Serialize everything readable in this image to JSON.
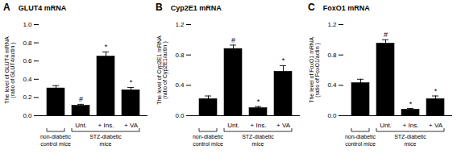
{
  "chart_data": [
    {
      "type": "bar",
      "panel_label": "A",
      "title": "GLUT4 mRNA",
      "y_label": "The level of GLUT4 mRNA\n(ratio of GLUT4/actin )",
      "categories": [
        null,
        "Unt.",
        "+ Ins.",
        "+ VA"
      ],
      "values": [
        0.3,
        0.11,
        0.65,
        0.28
      ],
      "errors": [
        0.03,
        0.015,
        0.05,
        0.03
      ],
      "annotations": [
        null,
        "#",
        "*",
        "*"
      ],
      "color": "#000000",
      "ylim": [
        0,
        1.0
      ],
      "yticks": [
        {
          "value": 0.0,
          "label": "0.0"
        },
        0.2,
        0.4,
        0.6,
        0.8,
        {
          "value": 1.0,
          "label": "1.0"
        }
      ],
      "groups": [
        {
          "label": "non-diabetic\ncontrol mice",
          "size": 1
        },
        {
          "label": "STZ-diabetic\nmice",
          "size": 3
        }
      ]
    },
    {
      "type": "bar",
      "panel_label": "B",
      "title": "Cyp2E1 mRNA",
      "y_label": "The level of Cyp2E1 mRNA\n(ratio of Cyp2E1/actin )",
      "categories": [
        null,
        "Unt.",
        "+ Ins.",
        "+ VA"
      ],
      "values": [
        0.22,
        0.88,
        0.1,
        0.58
      ],
      "errors": [
        0.04,
        0.05,
        0.02,
        0.08
      ],
      "annotations": [
        null,
        "#",
        "*",
        "*"
      ],
      "color": "#000000",
      "ylim": [
        0,
        1.2
      ],
      "yticks": [
        {
          "value": 0.0,
          "label": "0.0"
        },
        0.4,
        0.8,
        1.2
      ],
      "groups": [
        {
          "label": "non-diabetic\ncontrol mice",
          "size": 1
        },
        {
          "label": "STZ-diabetic\nmice",
          "size": 3
        }
      ]
    },
    {
      "type": "bar",
      "panel_label": "C",
      "title": "FoxO1 mRNA",
      "y_label": "The level of FoxO1 mRNA\n(ratio of FoxO1/actin )",
      "categories": [
        null,
        "Unt.",
        "+ Ins.",
        "+ VA"
      ],
      "values": [
        0.43,
        0.95,
        0.08,
        0.22
      ],
      "errors": [
        0.05,
        0.05,
        0.015,
        0.04
      ],
      "annotations": [
        null,
        "#",
        "*",
        "*"
      ],
      "color": "#000000",
      "ylim": [
        0,
        1.2
      ],
      "yticks": [
        {
          "value": 0.0,
          "label": "0.0"
        },
        0.4,
        0.8,
        1.2
      ],
      "groups": [
        {
          "label": "non-diabetic\ncontrol mice",
          "size": 1
        },
        {
          "label": "STZ-diabetic\nmice",
          "size": 3
        }
      ]
    }
  ]
}
